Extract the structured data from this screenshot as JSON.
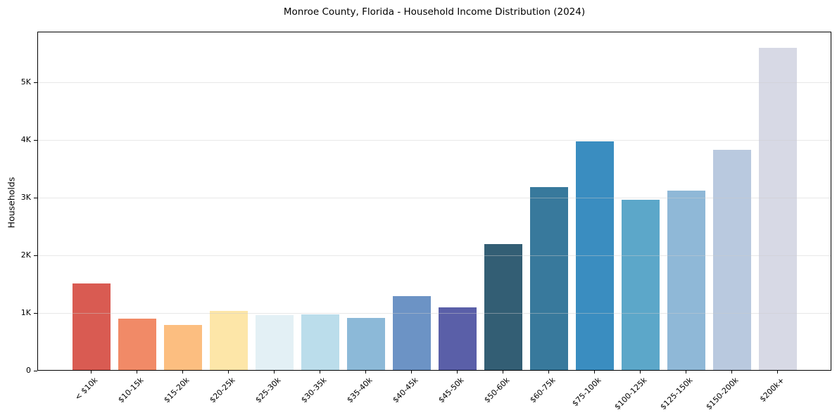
{
  "chart_data": {
    "type": "bar",
    "title": "Monroe County, Florida - Household Income Distribution (2024)",
    "xlabel": "",
    "ylabel": "Households",
    "categories": [
      "< $10k",
      "$10-15k",
      "$15-20k",
      "$20-25k",
      "$25-30k",
      "$30-35k",
      "$35-40k",
      "$40-45k",
      "$45-50k",
      "$50-60k",
      "$60-75k",
      "$75-100k",
      "$100-125k",
      "$125-150k",
      "$150-200k",
      "$200k+"
    ],
    "values": [
      1515,
      905,
      795,
      1040,
      960,
      980,
      915,
      1290,
      1100,
      2200,
      3185,
      3980,
      2965,
      3120,
      3835,
      5600
    ],
    "bar_colors": [
      "#d95b52",
      "#f18a67",
      "#fcbe80",
      "#fde6a8",
      "#e3f0f5",
      "#bbddeb",
      "#8cb9d8",
      "#6c93c5",
      "#5a5fa8",
      "#335e74",
      "#38799c",
      "#3a8dc0",
      "#5ca7c9",
      "#8fb8d7",
      "#b9c9df",
      "#d7d9e5"
    ],
    "ylim": [
      0,
      5880
    ],
    "yticks": [
      {
        "value": 0,
        "label": "0"
      },
      {
        "value": 1000,
        "label": "1K"
      },
      {
        "value": 2000,
        "label": "2K"
      },
      {
        "value": 3000,
        "label": "3K"
      },
      {
        "value": 4000,
        "label": "4K"
      },
      {
        "value": 5000,
        "label": "5K"
      }
    ],
    "grid": "horizontal",
    "legend": "none",
    "colors": {
      "spine": "#000000",
      "grid": "#e6e6e6",
      "background": "#ffffff",
      "text": "#000000"
    }
  }
}
